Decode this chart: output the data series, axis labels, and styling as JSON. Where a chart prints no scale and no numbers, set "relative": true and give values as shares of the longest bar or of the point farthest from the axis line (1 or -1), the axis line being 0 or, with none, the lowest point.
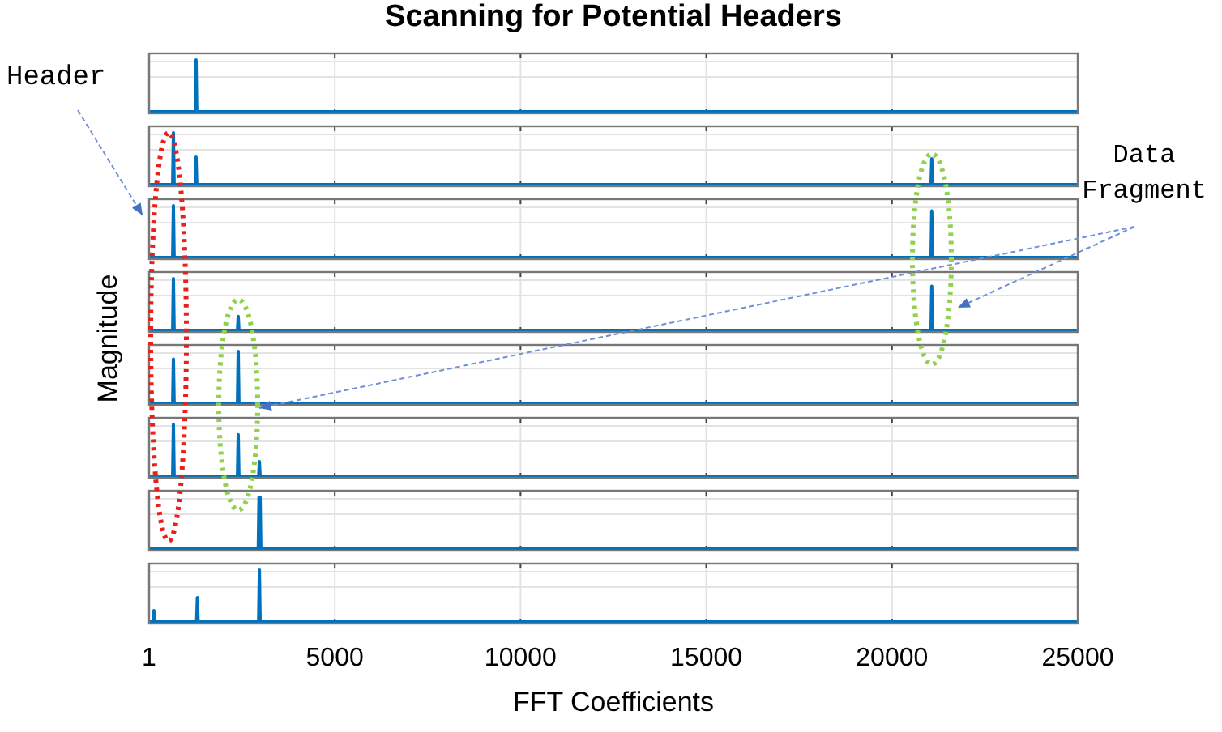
{
  "chart_data": [
    {
      "type": "line",
      "title": "Scanning for Potential Headers",
      "ylabel": "Magnitude",
      "annotations": [
        "Header"
      ],
      "relative": true,
      "grid": true,
      "tick_labels": false,
      "xlim": [
        1,
        25000
      ],
      "xticks": [
        1,
        5000,
        10000,
        15000,
        20000,
        25000
      ],
      "series": [
        {
          "color": "#0072bd",
          "x": [
            1,
            1245,
            1265,
            1285,
            25000
          ],
          "values": [
            0,
            0,
            1,
            0,
            0
          ]
        }
      ]
    },
    {
      "type": "line",
      "annotations": [
        "Data Fragment"
      ],
      "relative": true,
      "grid": true,
      "tick_labels": false,
      "xlim": [
        1,
        25000
      ],
      "xticks": [
        1,
        5000,
        10000,
        15000,
        20000,
        25000
      ],
      "series": [
        {
          "color": "#0072bd",
          "x": [
            1,
            635,
            655,
            675,
            1245,
            1265,
            1285,
            21050,
            21070,
            21090,
            25000
          ],
          "values": [
            0,
            0,
            1,
            0,
            0,
            0.53,
            0,
            0,
            0.5,
            0,
            0
          ]
        }
      ]
    },
    {
      "type": "line",
      "relative": true,
      "grid": true,
      "tick_labels": false,
      "xlim": [
        1,
        25000
      ],
      "xticks": [
        1,
        5000,
        10000,
        15000,
        20000,
        25000
      ],
      "series": [
        {
          "color": "#0072bd",
          "x": [
            1,
            635,
            655,
            675,
            21050,
            21070,
            21090,
            25000
          ],
          "values": [
            0,
            0,
            1,
            0,
            0,
            0.9,
            0,
            0
          ]
        }
      ]
    },
    {
      "type": "line",
      "relative": true,
      "grid": true,
      "tick_labels": false,
      "xlim": [
        1,
        25000
      ],
      "xticks": [
        1,
        5000,
        10000,
        15000,
        20000,
        25000
      ],
      "series": [
        {
          "color": "#0072bd",
          "x": [
            1,
            635,
            655,
            675,
            2380,
            2400,
            2420,
            21050,
            21070,
            21090,
            25000
          ],
          "values": [
            0,
            0,
            1,
            0,
            0,
            0.27,
            0,
            0,
            0.85,
            0,
            0
          ]
        }
      ]
    },
    {
      "type": "line",
      "relative": true,
      "grid": true,
      "tick_labels": false,
      "xlim": [
        1,
        25000
      ],
      "xticks": [
        1,
        5000,
        10000,
        15000,
        20000,
        25000
      ],
      "series": [
        {
          "color": "#0072bd",
          "x": [
            1,
            635,
            655,
            675,
            2380,
            2400,
            2420,
            25000
          ],
          "values": [
            0,
            0,
            0.85,
            0,
            0,
            1,
            0,
            0
          ]
        }
      ]
    },
    {
      "type": "line",
      "relative": true,
      "grid": true,
      "tick_labels": false,
      "xlim": [
        1,
        25000
      ],
      "xticks": [
        1,
        5000,
        10000,
        15000,
        20000,
        25000
      ],
      "series": [
        {
          "color": "#0072bd",
          "x": [
            1,
            635,
            655,
            675,
            2380,
            2400,
            2420,
            2950,
            2970,
            2990,
            25000
          ],
          "values": [
            0,
            0,
            1,
            0,
            0,
            0.8,
            0,
            0,
            0.28,
            0,
            0
          ]
        }
      ]
    },
    {
      "type": "line",
      "relative": true,
      "grid": true,
      "tick_labels": false,
      "xlim": [
        1,
        25000
      ],
      "xticks": [
        1,
        5000,
        10000,
        15000,
        20000,
        25000
      ],
      "series": [
        {
          "color": "#0072bd",
          "x": [
            1,
            2940,
            2960,
            2990,
            3010,
            25000
          ],
          "values": [
            0,
            0,
            1,
            1,
            0,
            0
          ]
        }
      ]
    },
    {
      "type": "line",
      "xlabel": "FFT Coefficients",
      "relative": true,
      "grid": true,
      "xlim": [
        1,
        25000
      ],
      "xticks": [
        1,
        5000,
        10000,
        15000,
        20000,
        25000
      ],
      "series": [
        {
          "color": "#0072bd",
          "x": [
            1,
            110,
            130,
            150,
            1280,
            1300,
            1320,
            2950,
            2970,
            2990,
            25000
          ],
          "values": [
            0,
            0,
            0.22,
            0,
            0,
            0.47,
            0,
            0,
            1,
            0,
            0
          ]
        }
      ]
    }
  ]
}
